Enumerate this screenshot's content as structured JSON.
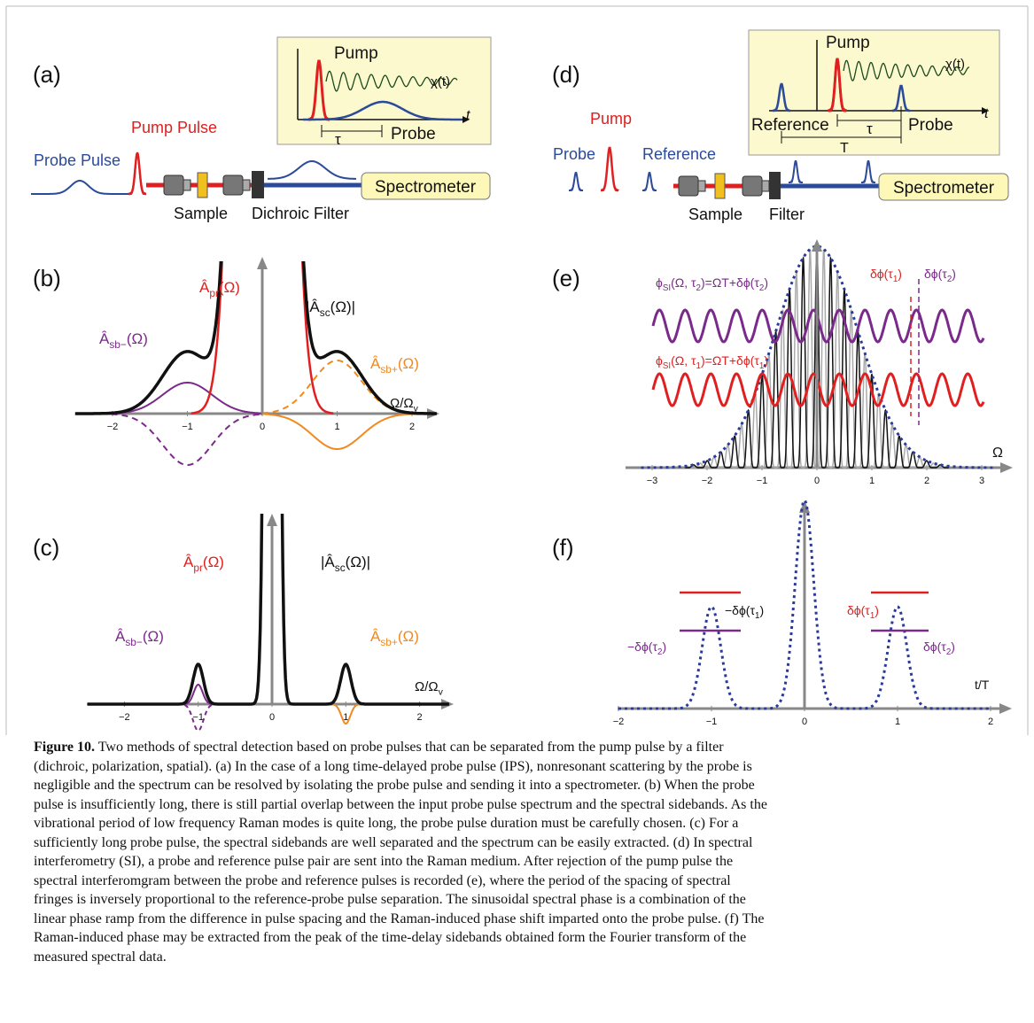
{
  "panel_a": {
    "label": "(a)",
    "pump_pulse": "Pump Pulse",
    "probe_pulse": "Probe Pulse",
    "sample": "Sample",
    "dichroic_filter": "Dichroic Filter",
    "spectrometer": "Spectrometer",
    "inset": {
      "pump": "Pump",
      "chi": "χ(t)",
      "t": "t",
      "tau": "τ",
      "probe": "Probe"
    }
  },
  "panel_d": {
    "label": "(d)",
    "probe": "Probe",
    "pump": "Pump",
    "reference": "Reference",
    "sample": "Sample",
    "filter": "Filter",
    "spectrometer": "Spectrometer",
    "inset": {
      "pump": "Pump",
      "chi": "χ(t)",
      "t": "t",
      "reference": "Reference",
      "tau": "τ",
      "probe": "Probe",
      "period": "T"
    }
  },
  "panel_b": {
    "label": "(b)",
    "a_pr": [
      "Â",
      "pr",
      "(Ω)"
    ],
    "a_sc": [
      "|Â",
      "sc",
      "(Ω)|"
    ],
    "a_sb_minus": [
      "Â",
      "sb−",
      "(Ω)"
    ],
    "a_sb_plus": [
      "Â",
      "sb+",
      "(Ω)"
    ],
    "x_axis": [
      "Ω/Ω",
      "v"
    ],
    "xticks": [
      "−2",
      "−1",
      "0",
      "1",
      "2"
    ]
  },
  "panel_c": {
    "label": "(c)",
    "a_pr": [
      "Â",
      "pr",
      "(Ω)"
    ],
    "a_sc": [
      "|Â",
      "sc",
      "(Ω)|"
    ],
    "a_sb_minus": [
      "Â",
      "sb−",
      "(Ω)"
    ],
    "a_sb_plus": [
      "Â",
      "sb+",
      "(Ω)"
    ],
    "x_axis": [
      "Ω/Ω",
      "v"
    ],
    "xticks": [
      "−2",
      "−1",
      "0",
      "1",
      "2"
    ]
  },
  "panel_e": {
    "label": "(e)",
    "phase_2": [
      "ϕ",
      "SI",
      "(Ω, τ",
      "2",
      ")=ΩT+δϕ(τ",
      "2",
      ")"
    ],
    "phase_1": [
      "ϕ",
      "SI",
      "(Ω, τ",
      "1",
      ")=ΩT+δϕ(τ",
      "1",
      ")"
    ],
    "dphi_1": [
      "δϕ(τ",
      "1",
      ")"
    ],
    "dphi_2": [
      "δϕ(τ",
      "2",
      ")"
    ],
    "x_axis": "Ω",
    "xticks": [
      "−3",
      "−2",
      "−1",
      "0",
      "1",
      "2",
      "3"
    ]
  },
  "panel_f": {
    "label": "(f)",
    "minus_dphi_1": [
      "−δϕ(τ",
      "1",
      ")"
    ],
    "minus_dphi_2": [
      "−δϕ(τ",
      "2",
      ")"
    ],
    "dphi_1": [
      "δϕ(τ",
      "1",
      ")"
    ],
    "dphi_2": [
      "δϕ(τ",
      "2",
      ")"
    ],
    "x_axis": "t/T",
    "xticks": [
      "−2",
      "−1",
      "0",
      "1",
      "2"
    ]
  },
  "caption": {
    "label": "Figure 10.",
    "lines": [
      "Two methods of spectral detection based on probe pulses that can be separated from the pump pulse by a filter",
      "(dichroic, polarization, spatial). (a) In the case of a long time-delayed probe pulse (IPS), nonresonant scattering by the probe is",
      "negligible and the spectrum can be resolved by isolating the probe pulse and sending it into a spectrometer. (b) When the probe",
      "pulse is insufficiently long, there is still partial overlap between the input probe pulse spectrum and the spectral sidebands. As the",
      "vibrational period of low frequency Raman modes is quite long, the probe pulse duration must be carefully chosen. (c) For a",
      "sufficiently long probe pulse, the spectral sidebands are well separated and the spectrum can be easily extracted. (d) In spectral",
      "interferometry (SI), a probe and reference pulse pair are sent into the Raman medium. After rejection of the pump pulse the",
      "spectral interferomgram between the probe and reference pulses is recorded (e), where the period of the spacing of spectral",
      "fringes is inversely proportional to the reference-probe pulse separation. The sinusoidal spectral phase is a combination of the",
      "linear phase ramp from the difference in pulse spacing and the Raman-induced phase shift imparted onto the probe pulse. (f) The",
      "Raman-induced phase may be extracted from the peak of the time-delay sidebands obtained form the Fourier transform of the",
      "measured spectral data."
    ]
  }
}
